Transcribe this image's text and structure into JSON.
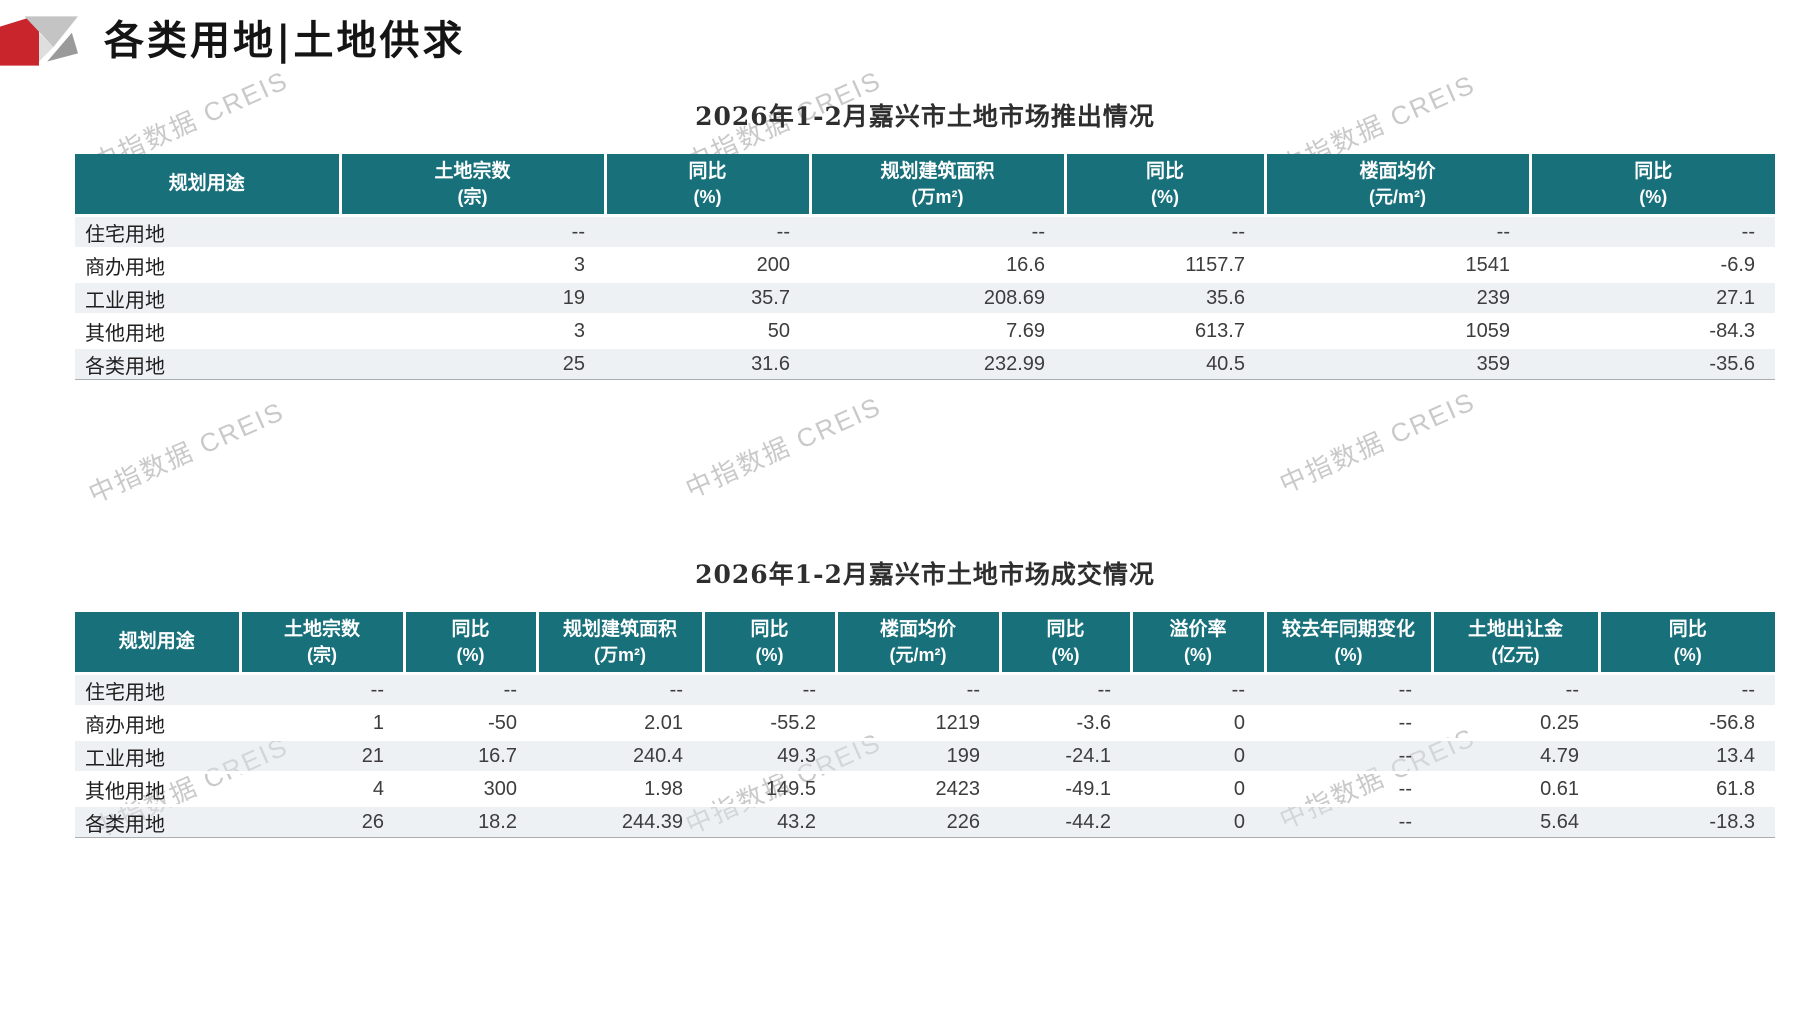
{
  "page": {
    "title": "各类用地|土地供求",
    "watermark": "中指数据 CREIS"
  },
  "colors": {
    "accent_red": "#c9252c",
    "logo_gray_light": "#c4c4c4",
    "logo_gray_dark": "#9a9a9a",
    "header_teal": "#17707a",
    "row_stripe": "#f3f5f7"
  },
  "supply_table": {
    "title": "2026年1-2月嘉兴市土地市场推出情况",
    "columns": [
      {
        "name": "规划用途",
        "unit": ""
      },
      {
        "name": "土地宗数",
        "unit": "(宗)"
      },
      {
        "name": "同比",
        "unit": "(%)"
      },
      {
        "name": "规划建筑面积",
        "unit": "(万m²)"
      },
      {
        "name": "同比",
        "unit": "(%)"
      },
      {
        "name": "楼面均价",
        "unit": "(元/m²)"
      },
      {
        "name": "同比",
        "unit": "(%)"
      }
    ],
    "rows": [
      {
        "label": "住宅用地",
        "values": [
          "--",
          "--",
          "--",
          "--",
          "--",
          "--"
        ]
      },
      {
        "label": "商办用地",
        "values": [
          "3",
          "200",
          "16.6",
          "1157.7",
          "1541",
          "-6.9"
        ]
      },
      {
        "label": "工业用地",
        "values": [
          "19",
          "35.7",
          "208.69",
          "35.6",
          "239",
          "27.1"
        ]
      },
      {
        "label": "其他用地",
        "values": [
          "3",
          "50",
          "7.69",
          "613.7",
          "1059",
          "-84.3"
        ]
      },
      {
        "label": "各类用地",
        "values": [
          "25",
          "31.6",
          "232.99",
          "40.5",
          "359",
          "-35.6"
        ]
      }
    ]
  },
  "transaction_table": {
    "title": "2026年1-2月嘉兴市土地市场成交情况",
    "columns": [
      {
        "name": "规划用途",
        "unit": ""
      },
      {
        "name": "土地宗数",
        "unit": "(宗)"
      },
      {
        "name": "同比",
        "unit": "(%)"
      },
      {
        "name": "规划建筑面积",
        "unit": "(万m²)"
      },
      {
        "name": "同比",
        "unit": "(%)"
      },
      {
        "name": "楼面均价",
        "unit": "(元/m²)"
      },
      {
        "name": "同比",
        "unit": "(%)"
      },
      {
        "name": "溢价率",
        "unit": "(%)"
      },
      {
        "name": "较去年同期变化",
        "unit": "(%)"
      },
      {
        "name": "土地出让金",
        "unit": "(亿元)"
      },
      {
        "name": "同比",
        "unit": "(%)"
      }
    ],
    "rows": [
      {
        "label": "住宅用地",
        "values": [
          "--",
          "--",
          "--",
          "--",
          "--",
          "--",
          "--",
          "--",
          "--",
          "--"
        ]
      },
      {
        "label": "商办用地",
        "values": [
          "1",
          "-50",
          "2.01",
          "-55.2",
          "1219",
          "-3.6",
          "0",
          "--",
          "0.25",
          "-56.8"
        ]
      },
      {
        "label": "工业用地",
        "values": [
          "21",
          "16.7",
          "240.4",
          "49.3",
          "199",
          "-24.1",
          "0",
          "--",
          "4.79",
          "13.4"
        ]
      },
      {
        "label": "其他用地",
        "values": [
          "4",
          "300",
          "1.98",
          "149.5",
          "2423",
          "-49.1",
          "0",
          "--",
          "0.61",
          "61.8"
        ]
      },
      {
        "label": "各类用地",
        "values": [
          "26",
          "18.2",
          "244.39",
          "43.2",
          "226",
          "-44.2",
          "0",
          "--",
          "5.64",
          "-18.3"
        ]
      }
    ]
  }
}
